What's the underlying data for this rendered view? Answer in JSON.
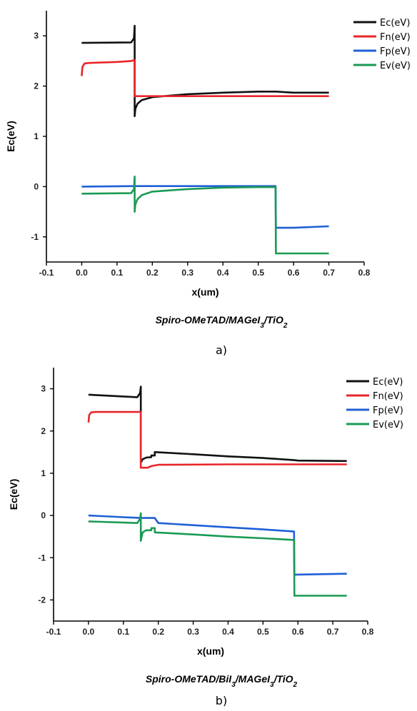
{
  "chart_data": [
    {
      "type": "line",
      "xlabel": "x(um)",
      "ylabel": "Ec(eV)",
      "xlim": [
        -0.1,
        0.8
      ],
      "ylim": [
        -1.5,
        3.5
      ],
      "xticks": [
        -0.1,
        0,
        0.1,
        0.2,
        0.3,
        0.4,
        0.5,
        0.6,
        0.7,
        0.8
      ],
      "xtick_labels": [
        "-0.1",
        "0.0",
        "0.1",
        "0.2",
        "0.3",
        "0.4",
        "0.5",
        "0.6",
        "0.7",
        "0.8"
      ],
      "yticks": [
        -1,
        0,
        1,
        2,
        3
      ],
      "ytick_labels": [
        "-1",
        "0",
        "1",
        "2",
        "3"
      ],
      "caption": {
        "text": "Spiro-OMeTAD/MAGeI",
        "sub1": "3",
        "mid": "/TiO",
        "sub2": "2"
      },
      "panel_label": "a)",
      "legend_placement": "top-right",
      "series": [
        {
          "name": "Ec(eV)",
          "color": "#111111",
          "x": [
            0,
            0.14,
            0.148,
            0.15,
            0.15,
            0.152,
            0.158,
            0.17,
            0.2,
            0.3,
            0.4,
            0.5,
            0.55,
            0.6,
            0.7
          ],
          "y": [
            2.86,
            2.87,
            2.95,
            3.2,
            1.4,
            1.55,
            1.65,
            1.72,
            1.78,
            1.84,
            1.87,
            1.89,
            1.89,
            1.87,
            1.87
          ]
        },
        {
          "name": "Fn(eV)",
          "color": "#e8262a",
          "x": [
            0,
            0.002,
            0.008,
            0.02,
            0.1,
            0.14,
            0.15,
            0.15,
            0.2,
            0.4,
            0.55,
            0.7
          ],
          "y": [
            2.2,
            2.38,
            2.45,
            2.46,
            2.48,
            2.5,
            2.52,
            1.8,
            1.8,
            1.8,
            1.8,
            1.8
          ]
        },
        {
          "name": "Fp(eV)",
          "color": "#1f5fd6",
          "x": [
            0,
            0.15,
            0.3,
            0.549,
            0.55,
            0.6,
            0.7
          ],
          "y": [
            0.0,
            0.01,
            0.01,
            0.01,
            -0.82,
            -0.82,
            -0.79
          ]
        },
        {
          "name": "Ev(eV)",
          "color": "#1a9a54",
          "x": [
            0,
            0.14,
            0.148,
            0.15,
            0.15,
            0.152,
            0.158,
            0.17,
            0.2,
            0.3,
            0.4,
            0.5,
            0.549,
            0.55,
            0.6,
            0.7
          ],
          "y": [
            -0.14,
            -0.13,
            -0.05,
            0.2,
            -0.5,
            -0.35,
            -0.25,
            -0.17,
            -0.1,
            -0.05,
            -0.02,
            -0.01,
            -0.01,
            -1.33,
            -1.33,
            -1.33
          ]
        }
      ]
    },
    {
      "type": "line",
      "xlabel": "x(um)",
      "ylabel": "Ec(eV)",
      "xlim": [
        -0.1,
        0.8
      ],
      "ylim": [
        -2.5,
        3.5
      ],
      "xticks": [
        -0.1,
        0,
        0.1,
        0.2,
        0.3,
        0.4,
        0.5,
        0.6,
        0.7,
        0.8
      ],
      "xtick_labels": [
        "-0.1",
        "0.0",
        "0.1",
        "0.2",
        "0.3",
        "0.4",
        "0.5",
        "0.6",
        "0.7",
        "0.8"
      ],
      "yticks": [
        -2,
        -1,
        0,
        1,
        2,
        3
      ],
      "ytick_labels": [
        "-2",
        "-1",
        "0",
        "1",
        "2",
        "3"
      ],
      "caption": {
        "text": "Spiro-OMeTAD/BiI",
        "sub1": "3",
        "mid": "/MAGeI",
        "sub2": "3",
        "tail": "/TiO",
        "sub3": "2"
      },
      "panel_label": "b)",
      "legend_placement": "top-right",
      "series": [
        {
          "name": "Ec(eV)",
          "color": "#111111",
          "x": [
            0,
            0.14,
            0.148,
            0.15,
            0.15,
            0.155,
            0.165,
            0.18,
            0.18,
            0.19,
            0.19,
            0.3,
            0.4,
            0.5,
            0.59,
            0.6,
            0.74
          ],
          "y": [
            2.86,
            2.8,
            2.9,
            3.05,
            1.25,
            1.33,
            1.37,
            1.38,
            1.42,
            1.42,
            1.5,
            1.45,
            1.4,
            1.36,
            1.31,
            1.3,
            1.29
          ]
        },
        {
          "name": "Fn(eV)",
          "color": "#e8262a",
          "x": [
            0,
            0.002,
            0.008,
            0.02,
            0.1,
            0.15,
            0.15,
            0.17,
            0.18,
            0.2,
            0.4,
            0.6,
            0.74
          ],
          "y": [
            2.2,
            2.38,
            2.44,
            2.45,
            2.45,
            2.45,
            1.13,
            1.13,
            1.17,
            1.2,
            1.21,
            1.21,
            1.21
          ]
        },
        {
          "name": "Fp(eV)",
          "color": "#1f5fd6",
          "x": [
            0,
            0.1,
            0.15,
            0.19,
            0.2,
            0.3,
            0.4,
            0.5,
            0.589,
            0.59,
            0.6,
            0.74
          ],
          "y": [
            0.0,
            -0.04,
            -0.06,
            -0.06,
            -0.18,
            -0.23,
            -0.28,
            -0.33,
            -0.38,
            -1.4,
            -1.4,
            -1.38
          ]
        },
        {
          "name": "Ev(eV)",
          "color": "#1a9a54",
          "x": [
            0,
            0.14,
            0.148,
            0.15,
            0.15,
            0.155,
            0.165,
            0.18,
            0.18,
            0.19,
            0.19,
            0.3,
            0.4,
            0.5,
            0.589,
            0.59,
            0.6,
            0.74
          ],
          "y": [
            -0.14,
            -0.18,
            -0.08,
            0.05,
            -0.6,
            -0.4,
            -0.35,
            -0.35,
            -0.3,
            -0.3,
            -0.4,
            -0.45,
            -0.5,
            -0.54,
            -0.58,
            -1.9,
            -1.9,
            -1.9
          ]
        }
      ]
    }
  ]
}
